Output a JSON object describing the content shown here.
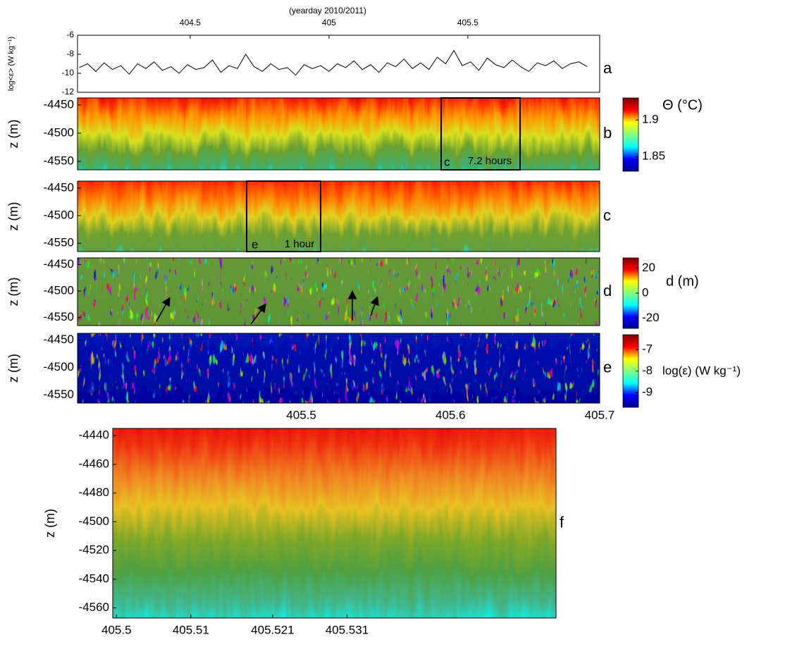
{
  "chart_data": [
    {
      "type": "line",
      "title": "(yearday 2010/2011)",
      "label": "a",
      "ylabel": "log<ε> (W kg⁻¹)",
      "xlim": [
        404.094,
        405.975
      ],
      "xticks": [
        404.5,
        405,
        405.5
      ],
      "ylim": [
        -12,
        -6
      ],
      "yticks": [
        -6,
        -8,
        -10,
        -12
      ],
      "color": "#000000",
      "x": [
        404.1,
        404.13,
        404.16,
        404.19,
        404.22,
        404.25,
        404.28,
        404.31,
        404.34,
        404.37,
        404.4,
        404.43,
        404.46,
        404.49,
        404.52,
        404.55,
        404.58,
        404.61,
        404.64,
        404.67,
        404.7,
        404.73,
        404.76,
        404.79,
        404.82,
        404.85,
        404.88,
        404.91,
        404.94,
        404.97,
        405,
        405.03,
        405.06,
        405.09,
        405.12,
        405.15,
        405.18,
        405.21,
        405.24,
        405.27,
        405.3,
        405.33,
        405.36,
        405.39,
        405.42,
        405.45,
        405.48,
        405.51,
        405.54,
        405.57,
        405.6,
        405.63,
        405.66,
        405.69,
        405.72,
        405.75,
        405.78,
        405.81,
        405.84,
        405.87,
        405.9,
        405.93
      ],
      "values": [
        -9.4,
        -9.0,
        -9.8,
        -8.9,
        -9.6,
        -9.2,
        -10.1,
        -9.0,
        -9.5,
        -8.8,
        -9.7,
        -9.3,
        -10.0,
        -9.1,
        -9.6,
        -9.4,
        -8.6,
        -9.9,
        -9.2,
        -9.5,
        -8.0,
        -9.3,
        -9.8,
        -9.0,
        -9.6,
        -9.4,
        -10.2,
        -9.1,
        -9.5,
        -9.2,
        -9.8,
        -9.0,
        -9.4,
        -8.7,
        -9.6,
        -9.1,
        -9.9,
        -8.9,
        -9.3,
        -8.5,
        -9.5,
        -8.9,
        -9.6,
        -8.3,
        -9.0,
        -7.6,
        -9.2,
        -8.8,
        -9.7,
        -8.4,
        -9.1,
        -9.4,
        -8.6,
        -9.3,
        -9.8,
        -8.9,
        -9.2,
        -8.7,
        -9.5,
        -9.0,
        -8.8,
        -9.3
      ]
    },
    {
      "type": "heatmap",
      "label": "b",
      "ylabel": "z (m)",
      "ylim": [
        -4565,
        -4437.5
      ],
      "yticks": [
        -4450,
        -4500,
        -4550
      ],
      "field_colors": [
        "#a00000",
        "#ff2000",
        "#ff9000",
        "#d8e020",
        "#6aa030",
        "#40b070",
        "#00ffff"
      ],
      "colorbar": {
        "title": "Θ (°C)",
        "clim": [
          1.83,
          1.93
        ],
        "cticks": [
          1.9,
          1.85
        ],
        "colormap": [
          "#00008f",
          "#0000ff",
          "#00ffff",
          "#80ff80",
          "#ffff00",
          "#ff0000",
          "#800000"
        ]
      },
      "annotations": [
        "c",
        "7.2 hours"
      ]
    },
    {
      "type": "heatmap",
      "label": "c",
      "ylabel": "z (m)",
      "ylim": [
        -4565,
        -4437.5
      ],
      "yticks": [
        -4450,
        -4500,
        -4550
      ],
      "field_colors": [
        "#c00000",
        "#ff3000",
        "#ff8000",
        "#e0d020",
        "#70a030",
        "#60a040",
        "#00ffff"
      ],
      "annotations": [
        "e",
        "1 hour"
      ]
    },
    {
      "type": "heatmap",
      "label": "d",
      "ylabel": "z (m)",
      "ylim": [
        -4565,
        -4437.5
      ],
      "yticks": [
        -4450,
        -4500,
        -4550
      ],
      "field_colors": [
        "#6a9a3a",
        "#5a9434"
      ],
      "colorbar": {
        "title": "d (m)",
        "clim": [
          -28,
          28
        ],
        "cticks": [
          20,
          0,
          -20
        ],
        "colormap": [
          "#00008f",
          "#0000ff",
          "#00ffff",
          "#80ff80",
          "#ffff00",
          "#ff0000",
          "#800000"
        ]
      }
    },
    {
      "type": "heatmap",
      "label": "e",
      "ylabel": "z (m)",
      "ylim": [
        -4565,
        -4437.5
      ],
      "yticks": [
        -4450,
        -4500,
        -4550
      ],
      "xlim": [
        405.35,
        405.7
      ],
      "xticks": [
        405.5,
        405.6,
        405.7
      ],
      "field_colors": [
        "#0018b8",
        "#00009a"
      ],
      "colorbar": {
        "title": "log(ε) (W kg⁻¹)",
        "clim": [
          -9.7,
          -6.3
        ],
        "cticks": [
          -7,
          -8,
          -9
        ],
        "colormap": [
          "#00008f",
          "#0000ff",
          "#00ffff",
          "#80ff80",
          "#ffff00",
          "#ff0000",
          "#800000"
        ]
      }
    },
    {
      "type": "heatmap",
      "label": "f",
      "ylabel": "z (m)",
      "ylim": [
        -4567,
        -4435
      ],
      "yticks": [
        -4440,
        -4460,
        -4480,
        -4500,
        -4520,
        -4540,
        -4560
      ],
      "xlim": [
        405.4995,
        405.5591
      ],
      "xticks": [
        405.5,
        405.51,
        405.521,
        405.531
      ],
      "field_colors": [
        "#e00000",
        "#f03010",
        "#f08020",
        "#e8c020",
        "#80a828",
        "#50a040",
        "#40b890",
        "#00ffff"
      ]
    }
  ]
}
